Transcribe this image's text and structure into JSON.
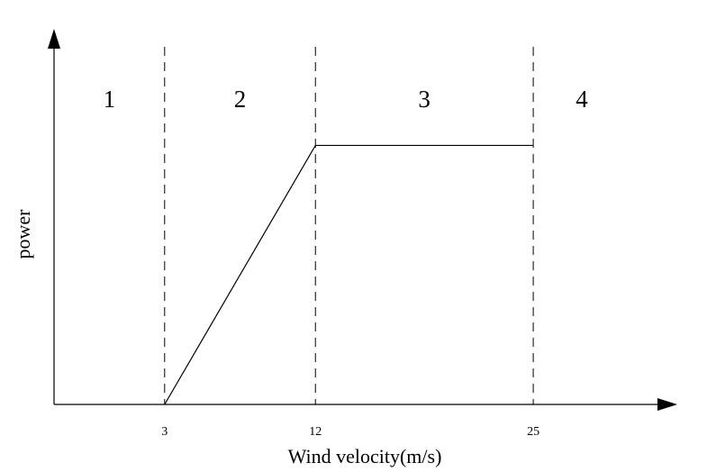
{
  "chart_data": {
    "type": "line",
    "title": "",
    "xlabel": "Wind velocity(m/s)",
    "ylabel": "power",
    "x_ticks": [
      "3",
      "12",
      "25"
    ],
    "region_labels": [
      "1",
      "2",
      "3",
      "4"
    ],
    "region_boundaries": [
      3,
      12,
      25
    ],
    "series": [
      {
        "x": [
          3,
          12,
          25
        ],
        "y": [
          0,
          1,
          1
        ]
      }
    ],
    "xlim": [
      -3.6,
      30.8
    ],
    "ylim": [
      0,
      1.45
    ],
    "grid": false,
    "legend": "none",
    "colors": {
      "line": "#000000",
      "boundary": "#000000",
      "axis": "#000000"
    }
  }
}
